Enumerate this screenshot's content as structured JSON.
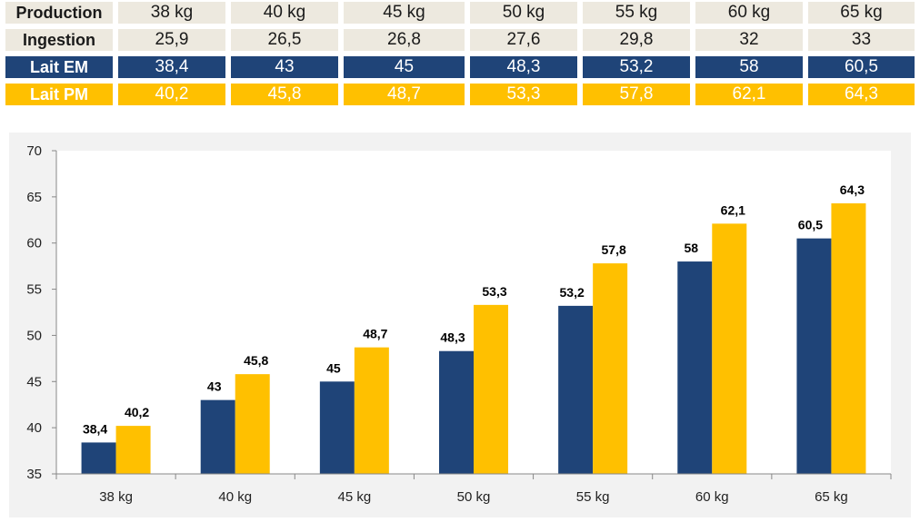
{
  "table": {
    "header": {
      "label": "Production",
      "cells": [
        "38 kg",
        "40 kg",
        "45 kg",
        "50 kg",
        "55 kg",
        "60 kg",
        "65 kg"
      ]
    },
    "rows": [
      {
        "label": "Ingestion",
        "cells": [
          "25,9",
          "26,5",
          "26,8",
          "27,6",
          "29,8",
          "32",
          "33"
        ]
      },
      {
        "label": "Lait EM",
        "cells": [
          "38,4",
          "43",
          "45",
          "48,3",
          "53,2",
          "58",
          "60,5"
        ]
      },
      {
        "label": "Lait PM",
        "cells": [
          "40,2",
          "45,8",
          "48,7",
          "53,3",
          "57,8",
          "62,1",
          "64,3"
        ]
      }
    ]
  },
  "colors": {
    "em": "#1f4478",
    "pm": "#ffc000",
    "table_light": "#ede9df",
    "chart_background": "#f2f2f2",
    "plot_background": "#ffffff"
  },
  "chart_data": {
    "type": "bar",
    "title": "",
    "xlabel": "",
    "ylabel": "",
    "categories": [
      "38 kg",
      "40 kg",
      "45 kg",
      "50 kg",
      "55 kg",
      "60 kg",
      "65 kg"
    ],
    "series": [
      {
        "values": [
          38.4,
          43,
          45,
          48.3,
          53.2,
          58,
          60.5
        ],
        "labels": [
          "38,4",
          "43",
          "45",
          "48,3",
          "53,2",
          "58",
          "60,5"
        ],
        "color": "#1f4478"
      },
      {
        "values": [
          40.2,
          45.8,
          48.7,
          53.3,
          57.8,
          62.1,
          64.3
        ],
        "labels": [
          "40,2",
          "45,8",
          "48,7",
          "53,3",
          "57,8",
          "62,1",
          "64,3"
        ],
        "color": "#ffc000"
      }
    ],
    "ylim": [
      35,
      70
    ],
    "yticks": [
      "35",
      "40",
      "45",
      "50",
      "55",
      "60",
      "65",
      "70"
    ],
    "grid": false,
    "legend": "none",
    "data_labels": true
  }
}
